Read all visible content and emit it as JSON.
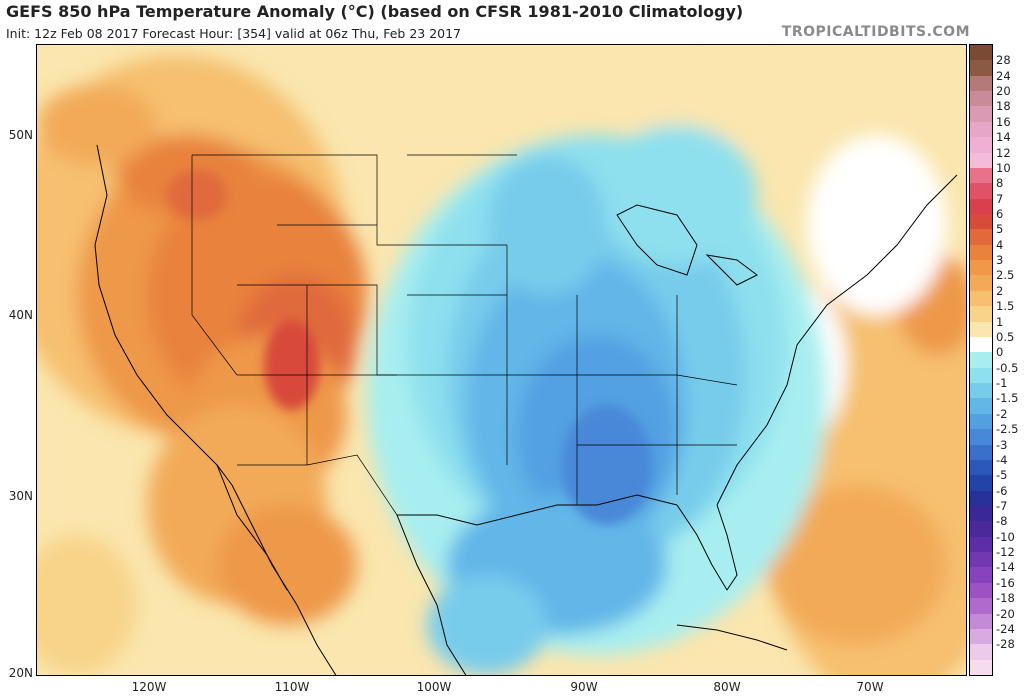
{
  "header": {
    "title": "GEFS 850 hPa Temperature Anomaly (°C) (based on CFSR 1981-2010 Climatology)",
    "subtitle": "Init: 12z Feb 08 2017   Forecast Hour: [354]   valid at 06z Thu, Feb 23 2017",
    "brand": "TROPICALTIDBITS.COM"
  },
  "axes": {
    "lat_labels": [
      "50N",
      "40N",
      "30N",
      "20N"
    ],
    "lon_labels": [
      "120W",
      "110W",
      "100W",
      "90W",
      "80W",
      "70W"
    ]
  },
  "colorbar": {
    "labels": [
      "28",
      "24",
      "20",
      "18",
      "16",
      "14",
      "12",
      "10",
      "8",
      "7",
      "6",
      "5",
      "4",
      "3",
      "2.5",
      "2",
      "1.5",
      "1",
      "0.5",
      "0",
      "-0.5",
      "-1",
      "-1.5",
      "-2",
      "-2.5",
      "-3",
      "-4",
      "-5",
      "-6",
      "-7",
      "-8",
      "-10",
      "-12",
      "-14",
      "-16",
      "-18",
      "-20",
      "-24",
      "-28"
    ],
    "colors": [
      "#7a4a34",
      "#8c5a44",
      "#b47a7a",
      "#c98a9a",
      "#d99ab2",
      "#e6a6c6",
      "#f0b0d6",
      "#f4bcd8",
      "#e8728a",
      "#e05268",
      "#d8404e",
      "#d84a3a",
      "#e06a3c",
      "#e8823c",
      "#ee9848",
      "#f2aa58",
      "#f6c070",
      "#f8d48a",
      "#fae6ae",
      "#ffffff",
      "#a8eef0",
      "#8ee0ee",
      "#78cceb",
      "#62b6e8",
      "#52a0e2",
      "#4888d8",
      "#3a70cc",
      "#2c58bc",
      "#2244a8",
      "#28309a",
      "#3a2896",
      "#4a2a9a",
      "#5e2ea6",
      "#7238b2",
      "#8842bc",
      "#9c52c4",
      "#b06ace",
      "#c48ad8",
      "#d8aae2",
      "#eccaea",
      "#f6dcec"
    ]
  }
}
